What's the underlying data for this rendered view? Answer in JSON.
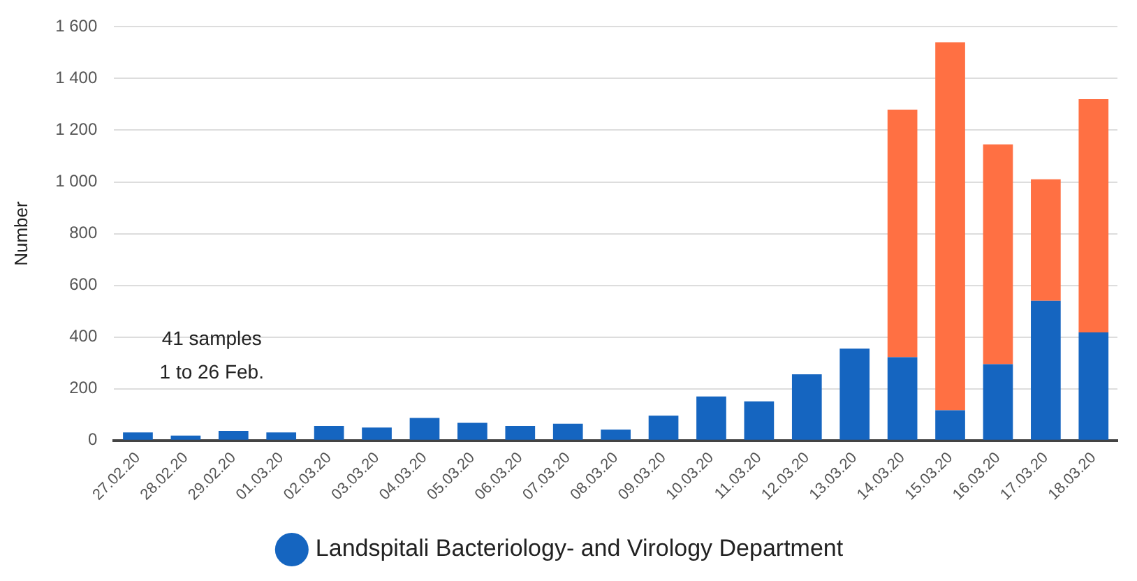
{
  "chart_data": {
    "type": "bar",
    "stacked": true,
    "ylabel": "Number",
    "categories": [
      "27.02.20",
      "28.02.20",
      "29.02.20",
      "01.03.20",
      "02.03.20",
      "03.03.20",
      "04.03.20",
      "05.03.20",
      "06.03.20",
      "07.03.20",
      "08.03.20",
      "09.03.20",
      "10.03.20",
      "11.03.20",
      "12.03.20",
      "13.03.20",
      "14.03.20",
      "15.03.20",
      "16.03.20",
      "17.03.20",
      "18.03.20"
    ],
    "series": [
      {
        "name": "Landspitali Bacteriology- and Virology Department",
        "color": "#1565c0",
        "values": [
          31,
          19,
          37,
          31,
          56,
          50,
          87,
          68,
          56,
          65,
          42,
          96,
          170,
          151,
          256,
          355,
          322,
          117,
          295,
          540,
          418
        ]
      },
      {
        "color": "#ff7043",
        "values": [
          null,
          null,
          null,
          null,
          null,
          null,
          null,
          null,
          null,
          null,
          null,
          null,
          null,
          null,
          null,
          null,
          958,
          1423,
          850,
          470,
          902
        ]
      }
    ],
    "ylim": [
      0,
      1600
    ],
    "yticks": [
      0,
      200,
      400,
      600,
      800,
      {
        "value": 1000,
        "label": "1 000"
      },
      {
        "value": 1200,
        "label": "1 200"
      },
      {
        "value": 1400,
        "label": "1 400"
      },
      {
        "value": 1600,
        "label": "1 600"
      }
    ],
    "grid": "y",
    "legend": "bottom",
    "annotations": [
      "41 samples",
      "1 to 26 Feb."
    ]
  }
}
